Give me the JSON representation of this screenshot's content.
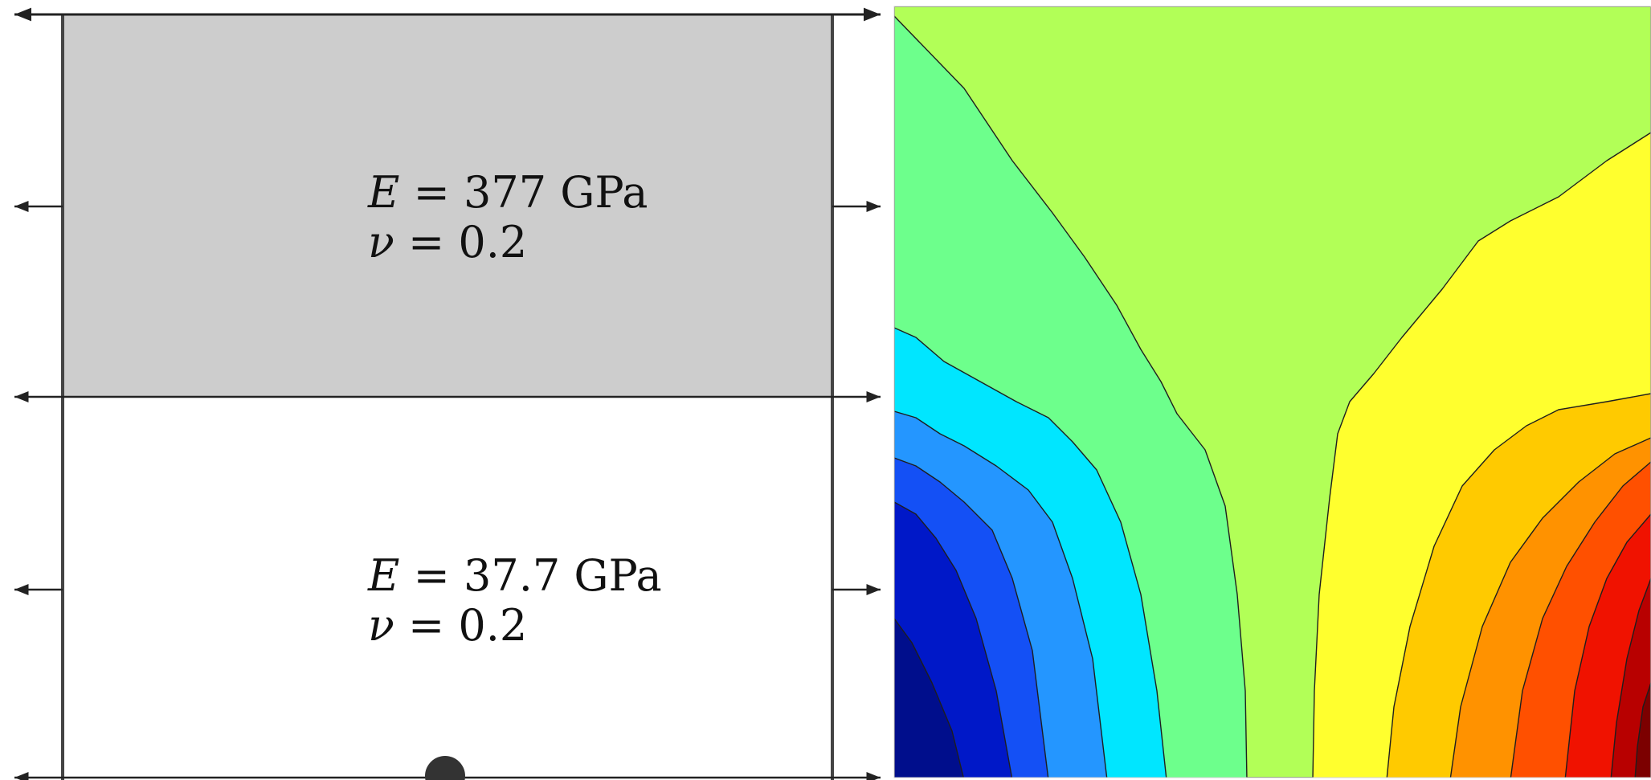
{
  "left_panel": {
    "top_material": {
      "modulus_symbol": "E",
      "modulus_text": " = 377 GPa",
      "poisson_symbol": "ν",
      "poisson_text": " = 0.2",
      "fill_color": "#cdcdcd"
    },
    "bottom_material": {
      "modulus_symbol": "E",
      "modulus_text": " = 37.7 GPa",
      "poisson_symbol": "ν",
      "poisson_text": " = 0.2",
      "fill_color": "#ffffff"
    }
  },
  "right_panel": {
    "colors": {
      "c0": "#000e8c",
      "c1": "#0018c8",
      "c2": "#1450f5",
      "c3": "#2496ff",
      "c4": "#00e6ff",
      "c5": "#6dff8c",
      "c6": "#b2ff57",
      "c7": "#ffff2e",
      "c8": "#ffca00",
      "c9": "#ff9200",
      "c10": "#ff5000",
      "c11": "#f01200",
      "c12": "#b80000",
      "c13": "#7c0000"
    }
  }
}
